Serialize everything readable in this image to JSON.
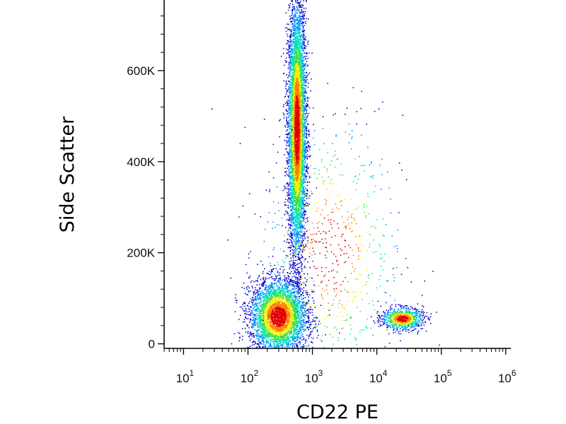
{
  "chart_data": {
    "type": "scatter",
    "style": "flow-cytometry-density-dot-plot",
    "xlabel": "CD22 PE",
    "ylabel": "Side Scatter",
    "x_scale": "log",
    "xlim": [
      5,
      1200000
    ],
    "ylim": [
      -10000,
      755000
    ],
    "x_ticks": [
      {
        "value": 10,
        "base": "10",
        "exp": "1"
      },
      {
        "value": 100,
        "base": "10",
        "exp": "2"
      },
      {
        "value": 1000,
        "base": "10",
        "exp": "3"
      },
      {
        "value": 10000,
        "base": "10",
        "exp": "4"
      },
      {
        "value": 100000,
        "base": "10",
        "exp": "5"
      },
      {
        "value": 1000000,
        "base": "10",
        "exp": "6"
      }
    ],
    "y_ticks": [
      {
        "value": 0,
        "label": "0"
      },
      {
        "value": 200000,
        "label": "200K"
      },
      {
        "value": 400000,
        "label": "400K"
      },
      {
        "value": 600000,
        "label": "600K"
      }
    ],
    "colormap": [
      "#0000cc",
      "#0090ff",
      "#00e0c0",
      "#40e040",
      "#f0f000",
      "#ff8000",
      "#e00000"
    ],
    "populations": [
      {
        "x_center": 580,
        "y_center": 470000,
        "x_spread_log": 0.07,
        "y_spread": 140000,
        "count": 6500
      },
      {
        "x_center": 300,
        "y_center": 60000,
        "x_spread_log": 0.22,
        "y_spread": 40000,
        "count": 4200
      },
      {
        "x_center": 25000,
        "y_center": 55000,
        "x_spread_log": 0.16,
        "y_spread": 12000,
        "count": 900
      },
      {
        "x_center": 2000,
        "y_center": 200000,
        "x_spread_log": 0.55,
        "y_spread": 150000,
        "count": 700
      }
    ],
    "grid": false
  }
}
